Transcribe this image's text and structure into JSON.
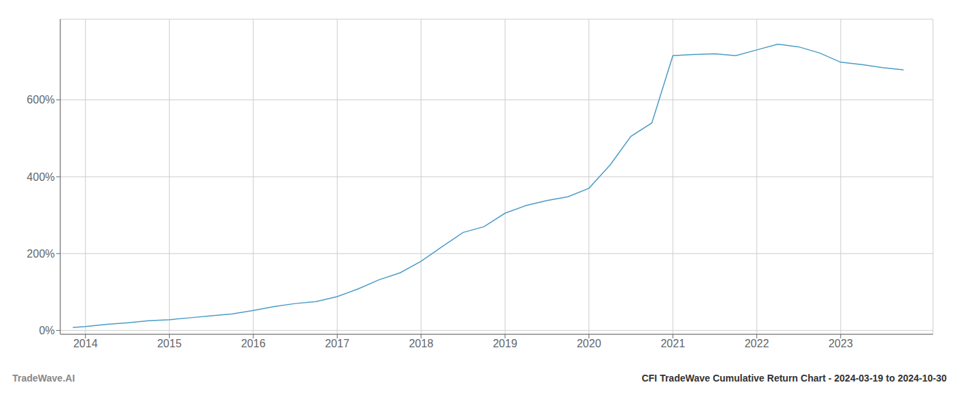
{
  "chart_data": {
    "type": "line",
    "title": "CFI TradeWave Cumulative Return Chart - 2024-03-19 to 2024-10-30",
    "annotations": [
      "TradeWave.AI"
    ],
    "x": [
      2013.85,
      2014.0,
      2014.25,
      2014.5,
      2014.75,
      2015.0,
      2015.25,
      2015.5,
      2015.75,
      2016.0,
      2016.25,
      2016.5,
      2016.75,
      2017.0,
      2017.25,
      2017.5,
      2017.75,
      2018.0,
      2018.25,
      2018.5,
      2018.75,
      2019.0,
      2019.25,
      2019.5,
      2019.75,
      2020.0,
      2020.25,
      2020.5,
      2020.75,
      2021.0,
      2021.25,
      2021.5,
      2021.75,
      2022.0,
      2022.25,
      2022.5,
      2022.75,
      2023.0,
      2023.25,
      2023.5,
      2023.75
    ],
    "values": [
      8,
      10,
      16,
      20,
      25,
      28,
      33,
      38,
      43,
      52,
      62,
      70,
      75,
      88,
      108,
      132,
      150,
      180,
      218,
      255,
      270,
      305,
      325,
      338,
      348,
      370,
      430,
      505,
      540,
      715,
      718,
      720,
      715,
      730,
      745,
      738,
      722,
      698,
      692,
      684,
      678
    ],
    "color": "#4a9cc7",
    "xlim": [
      2013.7,
      2024.1
    ],
    "xticks": [
      2014,
      2015,
      2016,
      2017,
      2018,
      2019,
      2020,
      2021,
      2022,
      2023
    ],
    "ylim": [
      -10,
      810
    ],
    "yticks": [
      {
        "value": 0,
        "label": "0%"
      },
      {
        "value": 200,
        "label": "200%"
      },
      {
        "value": 400,
        "label": "400%"
      },
      {
        "value": 600,
        "label": "600%"
      }
    ],
    "grid": true
  }
}
